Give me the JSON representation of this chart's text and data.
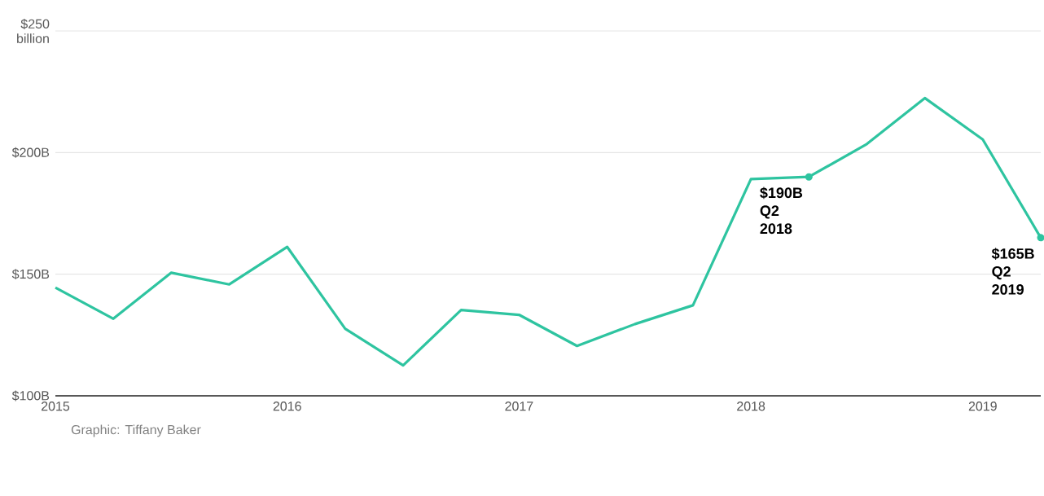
{
  "chart_data": {
    "type": "line",
    "x": [
      2015,
      2015.25,
      2015.5,
      2015.75,
      2016,
      2016.25,
      2016.5,
      2016.75,
      2017,
      2017.25,
      2017.5,
      2017.75,
      2018,
      2018.25,
      2018.5,
      2018.75,
      2019,
      2019.25
    ],
    "series": [
      {
        "color": "#2ec4a0",
        "values": [
          144.5,
          131.7,
          150.6,
          145.8,
          161.2,
          127.6,
          112.5,
          135.3,
          133.3,
          120.5,
          129.5,
          137.2,
          189.1,
          190,
          203.5,
          222.4,
          205.4,
          165
        ]
      }
    ],
    "xlim": [
      2015,
      2019.25
    ],
    "xticks": [
      2015,
      2016,
      2017,
      2018,
      2019
    ],
    "ylim": [
      100,
      250
    ],
    "yticks": [
      {
        "value": 100,
        "label": "$100B"
      },
      {
        "value": 150,
        "label": "$150B"
      },
      {
        "value": 200,
        "label": "$200B"
      },
      {
        "value": 250,
        "label": "$250 billion"
      }
    ],
    "grid": "y",
    "marker": "none",
    "line_style": "solid",
    "annotations": [
      {
        "text": "$190B Q2 2018",
        "x": 2018.25,
        "y": 190
      },
      {
        "text": "$165B Q2 2019",
        "x": 2019.25,
        "y": 165
      },
      "Graphic: Tiffany Baker"
    ]
  }
}
